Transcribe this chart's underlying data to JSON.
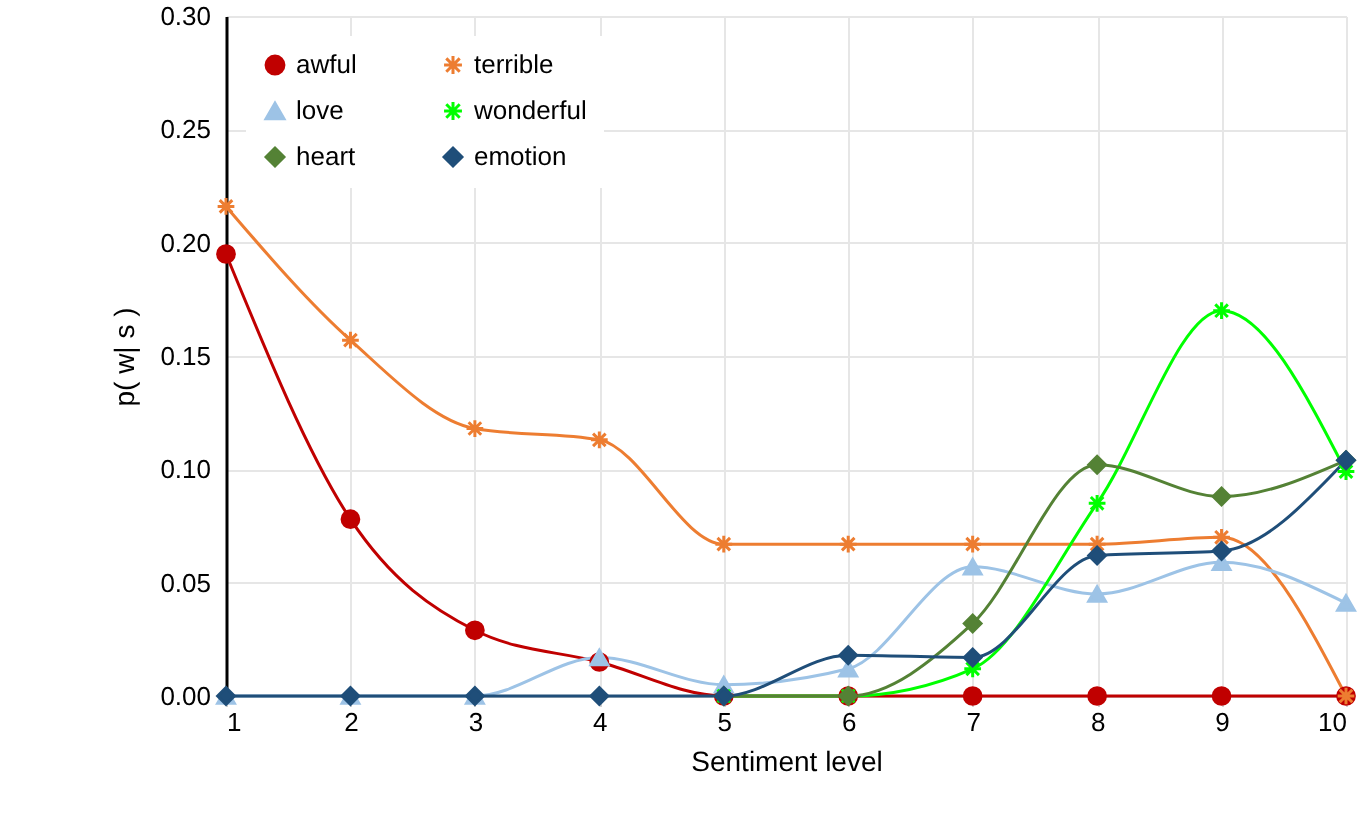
{
  "chart_data": {
    "type": "line",
    "xlabel": "Sentiment level",
    "ylabel": "p( w| s )",
    "x": [
      1,
      2,
      3,
      4,
      5,
      6,
      7,
      8,
      9,
      10
    ],
    "series": [
      {
        "name": "awful",
        "color": "#c00000",
        "marker": "circle",
        "values": [
          0.195,
          0.078,
          0.029,
          0.015,
          0,
          0,
          0,
          0,
          0,
          0
        ]
      },
      {
        "name": "terrible",
        "color": "#ed7d31",
        "marker": "cross",
        "values": [
          0.216,
          0.157,
          0.118,
          0.113,
          0.067,
          0.067,
          0.067,
          0.067,
          0.07,
          0
        ]
      },
      {
        "name": "love",
        "color": "#9dc3e6",
        "marker": "triangle",
        "values": [
          0,
          0,
          0,
          0.017,
          0.005,
          0.012,
          0.057,
          0.045,
          0.059,
          0.041
        ]
      },
      {
        "name": "wonderful",
        "color": "#00ff00",
        "marker": "cross",
        "values": [
          null,
          null,
          null,
          null,
          0,
          0,
          0.012,
          0.085,
          0.17,
          0.099
        ]
      },
      {
        "name": "heart",
        "color": "#548235",
        "marker": "diamond",
        "values": [
          null,
          null,
          null,
          null,
          0,
          0,
          0.032,
          0.102,
          0.088,
          0.104
        ]
      },
      {
        "name": "emotion",
        "color": "#1f4e79",
        "marker": "diamond",
        "values": [
          0,
          0,
          0,
          0,
          0,
          0.018,
          0.017,
          0.062,
          0.064,
          0.104
        ]
      }
    ],
    "xlim": [
      1,
      10
    ],
    "xticks": [
      1,
      2,
      3,
      4,
      5,
      6,
      7,
      8,
      9,
      10
    ],
    "ylim": [
      0,
      0.3
    ],
    "yticks": [
      {
        "value": 0,
        "label": "0.00"
      },
      {
        "value": 0.05,
        "label": "0.05"
      },
      {
        "value": 0.1,
        "label": "0.10"
      },
      {
        "value": 0.15,
        "label": "0.15"
      },
      {
        "value": 0.2,
        "label": "0.20"
      },
      {
        "value": 0.25,
        "label": "0.25"
      },
      {
        "value": 0.3,
        "label": "0.30"
      }
    ],
    "grid": true,
    "legend": "top left",
    "line_style": "solid"
  }
}
